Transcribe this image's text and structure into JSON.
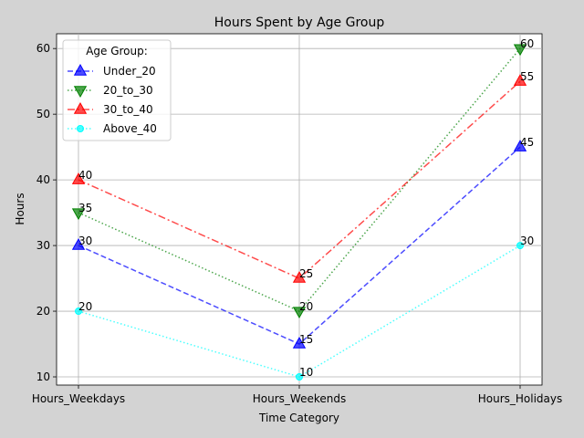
{
  "chart_data": {
    "type": "line",
    "title": "Hours Spent by Age Group",
    "xlabel": "Time Category",
    "ylabel": "Hours",
    "categories": [
      "Hours_Weekdays",
      "Hours_Weekends",
      "Hours_Holidays"
    ],
    "ylim": [
      8.75,
      62.25
    ],
    "yticks": [
      10,
      20,
      30,
      40,
      50,
      60
    ],
    "grid": true,
    "legend": {
      "title": "Age Group:",
      "position": "top-left"
    },
    "series": [
      {
        "name": "Under_20",
        "values": [
          30,
          15,
          45
        ],
        "color": "#0000ff",
        "dash": "6,3",
        "marker": "triangle-up"
      },
      {
        "name": "20_to_30",
        "values": [
          35,
          20,
          60
        ],
        "color": "#008000",
        "dash": "1.5,2.5",
        "marker": "triangle-down"
      },
      {
        "name": "30_to_40",
        "values": [
          40,
          25,
          55
        ],
        "color": "#ff0000",
        "dash": "8,3,2,3",
        "marker": "triangle-up"
      },
      {
        "name": "Above_40",
        "values": [
          20,
          10,
          30
        ],
        "color": "#00ffff",
        "dash": "1.5,2.5",
        "marker": "circle"
      }
    ]
  }
}
